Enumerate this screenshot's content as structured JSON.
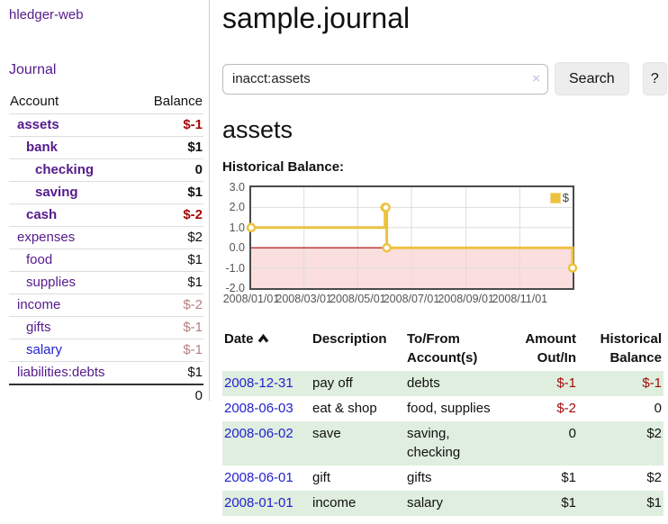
{
  "app": {
    "brand": "hledger-web",
    "nav_journal": "Journal"
  },
  "sidebar": {
    "account_header": "Account",
    "balance_header": "Balance",
    "rows": [
      {
        "account": "assets",
        "balance": "$-1"
      },
      {
        "account": "bank",
        "balance": "$1"
      },
      {
        "account": "checking",
        "balance": "0"
      },
      {
        "account": "saving",
        "balance": "$1"
      },
      {
        "account": "cash",
        "balance": "$-2"
      },
      {
        "account": "expenses",
        "balance": "$2"
      },
      {
        "account": "food",
        "balance": "$1"
      },
      {
        "account": "supplies",
        "balance": "$1"
      },
      {
        "account": "income",
        "balance": "$-2"
      },
      {
        "account": "gifts",
        "balance": "$-1"
      },
      {
        "account": "salary",
        "balance": "$-1"
      },
      {
        "account": "liabilities:debts",
        "balance": "$1"
      }
    ],
    "total": "0"
  },
  "main": {
    "title": "sample.journal",
    "search": {
      "value": "inacct:assets",
      "clear_icon": "×",
      "button_label": "Search",
      "help_label": "?"
    },
    "account_title": "assets",
    "chart_label": "Historical Balance:"
  },
  "chart_data": {
    "type": "line",
    "title": "Historical Balance:",
    "step": true,
    "x_range": [
      "2008-01-01",
      "2008-12-31"
    ],
    "ylim": [
      -2,
      3
    ],
    "y_ticks": [
      3,
      2,
      1,
      0,
      -1,
      -2
    ],
    "x_ticks": [
      {
        "date": "2008-01-01",
        "label": "2008/01/01"
      },
      {
        "date": "2008-03-01",
        "label": "2008/03/01"
      },
      {
        "date": "2008-05-01",
        "label": "2008/05/01"
      },
      {
        "date": "2008-07-01",
        "label": "2008/07/01"
      },
      {
        "date": "2008-09-01",
        "label": "2008/09/01"
      },
      {
        "date": "2008-11-01",
        "label": "2008/11/01"
      }
    ],
    "series": [
      {
        "name": "$",
        "color": "#edc240",
        "points": [
          {
            "date": "2008-01-01",
            "value": 1
          },
          {
            "date": "2008-06-01",
            "value": 2
          },
          {
            "date": "2008-06-02",
            "value": 2
          },
          {
            "date": "2008-06-03",
            "value": 0
          },
          {
            "date": "2008-12-31",
            "value": -1
          }
        ]
      }
    ],
    "legend": {
      "label": "$",
      "swatch_color": "#edc240",
      "position": "top-right"
    },
    "grid": true,
    "grid_color": "#dddddd",
    "border_color": "#4a4a4a",
    "negative_region_color": "#fbdede",
    "zero_line_color": "#aa0000"
  },
  "register": {
    "headers": {
      "date": "Date",
      "description": "Description",
      "accounts": "To/From Account(s)",
      "amount": "Amount Out/In",
      "balance": "Historical Balance"
    },
    "rows": [
      {
        "date": "2008-12-31",
        "description": "pay off",
        "accounts": "debts",
        "amount": "$-1",
        "balance": "$-1"
      },
      {
        "date": "2008-06-03",
        "description": "eat & shop",
        "accounts": "food, supplies",
        "amount": "$-2",
        "balance": "0"
      },
      {
        "date": "2008-06-02",
        "description": "save",
        "accounts": "saving,\nchecking",
        "amount": "0",
        "balance": "$2"
      },
      {
        "date": "2008-06-01",
        "description": "gift",
        "accounts": "gifts",
        "amount": "$1",
        "balance": "$2"
      },
      {
        "date": "2008-01-01",
        "description": "income",
        "accounts": "salary",
        "amount": "$1",
        "balance": "$1"
      }
    ]
  }
}
